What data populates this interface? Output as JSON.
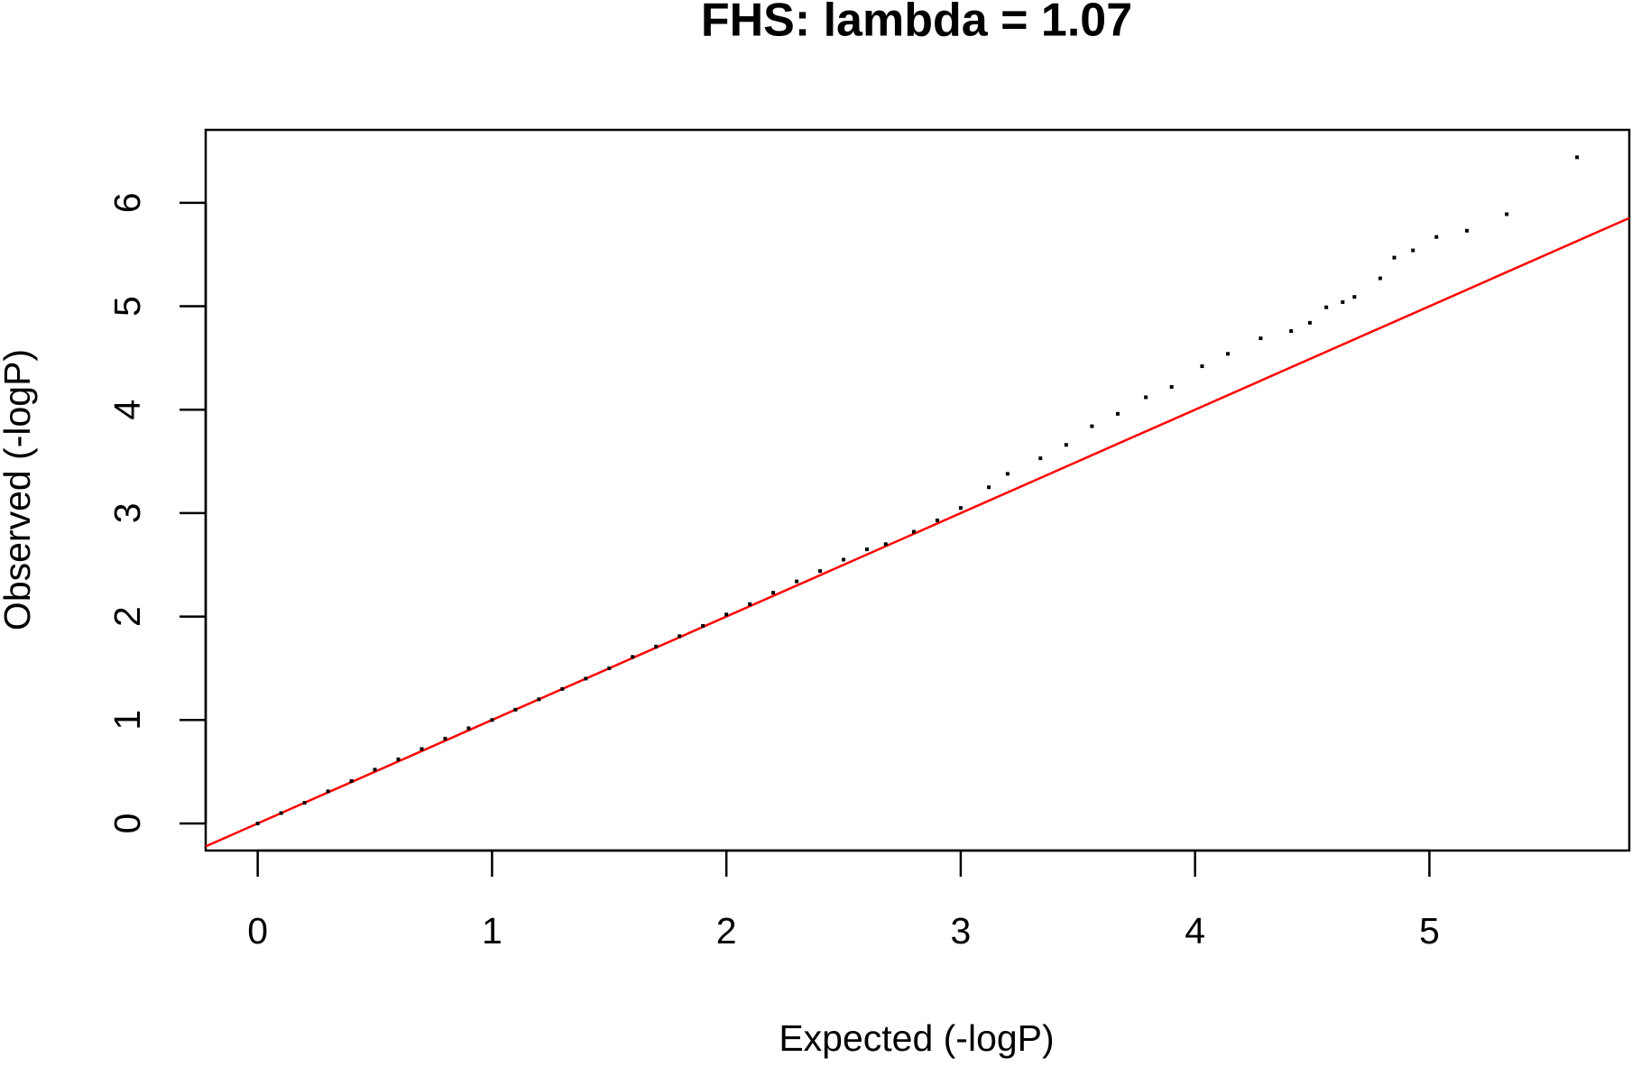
{
  "chart_data": {
    "type": "scatter",
    "title": "FHS: lambda = 1.07",
    "x_label": "Expected (-logP)",
    "y_label": "Observed (-logP)",
    "x": [
      0,
      0.1,
      0.2,
      0.3,
      0.4,
      0.5,
      0.6,
      0.7,
      0.8,
      0.9,
      1.0,
      1.1,
      1.2,
      1.3,
      1.4,
      1.5,
      1.6,
      1.7,
      1.8,
      1.9,
      2.0,
      2.1,
      2.2,
      2.3,
      2.4,
      2.5,
      2.6,
      2.68,
      2.8,
      2.9,
      3.0,
      3.12,
      3.2,
      3.34,
      3.45,
      3.56,
      3.67,
      3.79,
      3.9,
      4.03,
      4.14,
      4.28,
      4.41,
      4.49,
      4.56,
      4.63,
      4.68,
      4.79,
      4.85,
      4.93,
      5.03,
      5.16,
      5.33,
      5.63
    ],
    "series": [
      {
        "color": "#000000",
        "values": [
          0,
          0.1,
          0.2,
          0.31,
          0.41,
          0.52,
          0.62,
          0.72,
          0.82,
          0.92,
          1.0,
          1.1,
          1.2,
          1.3,
          1.4,
          1.5,
          1.61,
          1.71,
          1.81,
          1.91,
          2.02,
          2.12,
          2.23,
          2.34,
          2.44,
          2.55,
          2.65,
          2.7,
          2.82,
          2.93,
          3.05,
          3.25,
          3.38,
          3.53,
          3.66,
          3.84,
          3.96,
          4.12,
          4.22,
          4.42,
          4.54,
          4.69,
          4.76,
          4.84,
          4.99,
          5.04,
          5.09,
          5.27,
          5.47,
          5.54,
          5.67,
          5.73,
          5.89,
          6.44
        ]
      }
    ],
    "reference_line": {
      "slope": 1,
      "intercept": 0,
      "color": "#ff0000"
    },
    "xlim": [
      -0.222,
      5.853
    ],
    "ylim": [
      -0.262,
      6.705
    ],
    "xticks": [
      0,
      1,
      2,
      3,
      4,
      5
    ],
    "yticks": [
      0,
      1,
      2,
      3,
      4,
      5,
      6
    ]
  }
}
